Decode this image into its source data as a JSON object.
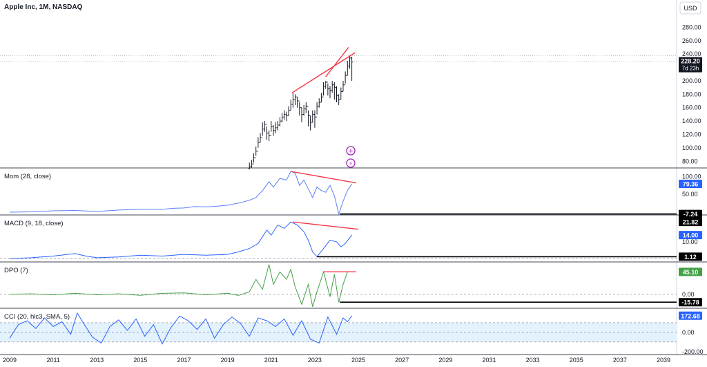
{
  "header": {
    "title": "Apple Inc, 1M, NASDAQ",
    "currency": "USD"
  },
  "price_badge": {
    "price": "228.20",
    "countdown": "7d 23h"
  },
  "colors": {
    "candle": "#131722",
    "trendline": "#f23645",
    "blue": "#2962ff",
    "mom_line": "#5b7ef5",
    "green": "#43a047",
    "cci_band": "#e3f2fd",
    "grid": "#d1d4dc"
  },
  "x_axis": {
    "labels": [
      "2009",
      "2011",
      "2013",
      "2015",
      "2017",
      "2019",
      "2021",
      "2023",
      "2025",
      "2027",
      "2029",
      "2031",
      "2033",
      "2035",
      "2037",
      "2039"
    ]
  },
  "chart_data": [
    {
      "type": "candlestick",
      "title": "Apple Inc, 1M, NASDAQ",
      "ylim": [
        70,
        300
      ],
      "yticks": [
        80,
        100,
        120,
        140,
        160,
        180,
        200,
        220,
        240,
        260,
        280
      ],
      "x": [
        2020.0,
        2020.1,
        2020.2,
        2020.3,
        2020.4,
        2020.5,
        2020.6,
        2020.7,
        2020.8,
        2020.9,
        2021.0,
        2021.1,
        2021.2,
        2021.3,
        2021.4,
        2021.5,
        2021.6,
        2021.7,
        2021.8,
        2021.9,
        2022.0,
        2022.1,
        2022.2,
        2022.3,
        2022.4,
        2022.5,
        2022.6,
        2022.7,
        2022.8,
        2022.9,
        2023.0,
        2023.1,
        2023.2,
        2023.3,
        2023.4,
        2023.5,
        2023.6,
        2023.7,
        2023.8,
        2023.9,
        2024.0,
        2024.1,
        2024.2,
        2024.3,
        2024.4,
        2024.5,
        2024.6,
        2024.7
      ],
      "close": [
        72,
        76,
        85,
        95,
        108,
        115,
        128,
        135,
        122,
        118,
        132,
        126,
        130,
        134,
        140,
        146,
        150,
        148,
        156,
        165,
        172,
        176,
        170,
        160,
        150,
        158,
        162,
        148,
        138,
        150,
        146,
        162,
        168,
        176,
        192,
        198,
        188,
        186,
        194,
        190,
        178,
        172,
        184,
        194,
        208,
        222,
        234,
        228
      ],
      "high": [
        78,
        82,
        92,
        102,
        116,
        122,
        138,
        140,
        132,
        126,
        140,
        134,
        138,
        140,
        146,
        152,
        156,
        154,
        162,
        172,
        182,
        180,
        176,
        168,
        160,
        164,
        168,
        156,
        148,
        156,
        156,
        168,
        174,
        182,
        198,
        200,
        196,
        192,
        200,
        198,
        192,
        180,
        190,
        200,
        214,
        230,
        238,
        236
      ],
      "low": [
        68,
        70,
        78,
        88,
        100,
        108,
        118,
        124,
        112,
        110,
        124,
        118,
        122,
        126,
        132,
        138,
        142,
        140,
        148,
        156,
        160,
        164,
        160,
        148,
        138,
        148,
        152,
        132,
        126,
        138,
        130,
        150,
        160,
        168,
        178,
        188,
        178,
        174,
        182,
        172,
        168,
        164,
        172,
        184,
        196,
        208,
        218,
        200
      ],
      "trendlines": [
        {
          "x1": 2021.95,
          "y1": 182,
          "x2": 2024.85,
          "y2": 242
        },
        {
          "x1": 2023.5,
          "y1": 206,
          "x2": 2024.55,
          "y2": 250
        }
      ],
      "reference_lines": [
        238,
        228.2
      ]
    },
    {
      "type": "line",
      "title": "Mom (28, close)",
      "ylim": [
        -10,
        125
      ],
      "yticks": [
        50,
        100
      ],
      "last_value": "79.36",
      "level_value": "-7.24",
      "x": [
        2009.0,
        2010.0,
        2011.0,
        2012.0,
        2013.0,
        2014.0,
        2015.0,
        2016.0,
        2016.5,
        2017.0,
        2017.5,
        2018.0,
        2018.5,
        2019.0,
        2019.5,
        2020.0,
        2020.3,
        2020.6,
        2020.9,
        2021.1,
        2021.4,
        2021.7,
        2021.9,
        2022.1,
        2022.3,
        2022.5,
        2022.7,
        2022.9,
        2023.1,
        2023.3,
        2023.5,
        2023.7,
        2023.9,
        2024.1,
        2024.3,
        2024.5,
        2024.7
      ],
      "values": [
        -2,
        -1,
        2,
        3,
        0,
        4,
        6,
        6,
        9,
        10,
        14,
        13,
        15,
        18,
        24,
        32,
        40,
        60,
        85,
        70,
        95,
        90,
        115,
        110,
        75,
        90,
        65,
        40,
        70,
        60,
        55,
        75,
        45,
        -7,
        30,
        60,
        79.36
      ],
      "trendline": {
        "x1": 2021.9,
        "y1": 115,
        "x2": 2024.9,
        "y2": 82
      },
      "level_line": {
        "x1": 2024.15,
        "y": -7.24
      }
    },
    {
      "type": "line",
      "title": "MACD (9, 18, close)",
      "ylim": [
        -2,
        26
      ],
      "yticks": [
        10
      ],
      "last_value": "14.00",
      "level_value": "1.12",
      "top_value": "21.82",
      "x": [
        2009.0,
        2010.0,
        2011.0,
        2012.0,
        2012.5,
        2013.0,
        2014.0,
        2015.0,
        2016.0,
        2017.0,
        2018.0,
        2019.0,
        2019.5,
        2020.0,
        2020.4,
        2020.8,
        2021.0,
        2021.3,
        2021.6,
        2021.9,
        2022.2,
        2022.5,
        2022.7,
        2022.9,
        2023.1,
        2023.4,
        2023.7,
        2024.0,
        2024.2,
        2024.4,
        2024.7
      ],
      "values": [
        0,
        0.5,
        1.5,
        3,
        1.5,
        0.5,
        1,
        2,
        1.5,
        2.5,
        2,
        2.5,
        4,
        6,
        9,
        17,
        14,
        20,
        18,
        21.8,
        20,
        16,
        11,
        4,
        1.12,
        6,
        11,
        10,
        7,
        9,
        14
      ],
      "trendline": {
        "x1": 2022.0,
        "y1": 21.8,
        "x2": 2025.0,
        "y2": 17.5
      },
      "level_line": {
        "x1": 2023.1,
        "y": 1.12
      }
    },
    {
      "type": "line",
      "title": "DPO (7)",
      "ylim": [
        -28,
        65
      ],
      "yticks": [
        0
      ],
      "last_value": "45.10",
      "level_value": "-15.78",
      "x": [
        2009.0,
        2010.0,
        2011.0,
        2012.0,
        2013.0,
        2014.0,
        2015.0,
        2016.0,
        2017.0,
        2018.0,
        2019.0,
        2019.5,
        2020.0,
        2020.3,
        2020.6,
        2020.9,
        2021.1,
        2021.4,
        2021.7,
        2021.9,
        2022.1,
        2022.4,
        2022.7,
        2022.9,
        2023.1,
        2023.4,
        2023.7,
        2023.9,
        2024.1,
        2024.3,
        2024.5,
        2024.7
      ],
      "values": [
        0,
        1,
        -1,
        2,
        -1,
        1,
        -2,
        2,
        3,
        -1,
        2,
        -2,
        5,
        30,
        10,
        60,
        20,
        45,
        30,
        50,
        15,
        -20,
        20,
        -25,
        5,
        45,
        -5,
        40,
        -15.78,
        20,
        45,
        45.1
      ],
      "trendline": {
        "x1": 2023.4,
        "y1": 45.1,
        "x2": 2024.9,
        "y2": 45.1
      },
      "level_line": {
        "x1": 2024.15,
        "y": -15.78
      }
    },
    {
      "type": "area",
      "title": "CCI (20, hlc3, SMA, 5)",
      "ylim": [
        -230,
        250
      ],
      "yticks": [
        0,
        -200
      ],
      "band": [
        -100,
        100
      ],
      "last_value": "172.68",
      "x": [
        2009.0,
        2009.4,
        2009.8,
        2010.2,
        2010.6,
        2011.0,
        2011.4,
        2011.8,
        2012.1,
        2012.4,
        2012.8,
        2013.2,
        2013.6,
        2014.0,
        2014.4,
        2014.8,
        2015.2,
        2015.6,
        2016.0,
        2016.4,
        2016.8,
        2017.2,
        2017.6,
        2018.0,
        2018.4,
        2018.8,
        2019.2,
        2019.6,
        2020.0,
        2020.4,
        2020.8,
        2021.2,
        2021.6,
        2022.0,
        2022.4,
        2022.8,
        2023.2,
        2023.6,
        2024.0,
        2024.3,
        2024.5,
        2024.7
      ],
      "values": [
        -60,
        80,
        120,
        40,
        150,
        60,
        110,
        -20,
        200,
        90,
        -50,
        -110,
        60,
        130,
        20,
        140,
        -40,
        80,
        -120,
        50,
        170,
        120,
        30,
        140,
        -60,
        80,
        160,
        90,
        -40,
        150,
        120,
        60,
        140,
        -30,
        120,
        -70,
        -110,
        160,
        -20,
        150,
        110,
        172.68
      ]
    }
  ]
}
